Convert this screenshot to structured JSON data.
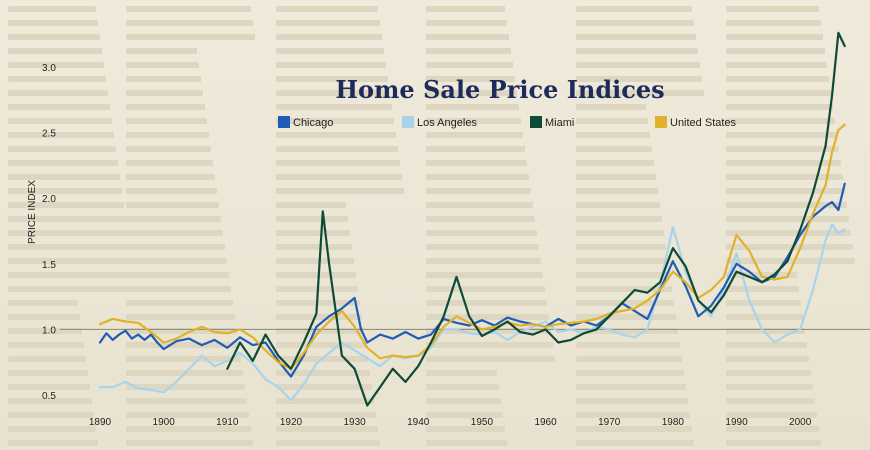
{
  "chart_data": {
    "type": "line",
    "title": "Home Sale Price Indices",
    "ylabel": "PRICE INDEX",
    "xlabel": "",
    "xlim": [
      1887,
      2010
    ],
    "ylim": [
      0.35,
      3.15
    ],
    "x_ticks": [
      1890,
      1900,
      1910,
      1920,
      1930,
      1940,
      1950,
      1960,
      1970,
      1980,
      1990,
      2000
    ],
    "y_ticks": [
      0.5,
      1.0,
      1.5,
      2.0,
      2.5,
      3.0
    ],
    "y_tick_labels": [
      "0.5",
      "1.0",
      "1.5",
      "2.0",
      "2.5",
      "3.0"
    ],
    "reference_line": 1.0,
    "grid": false,
    "legend_position": "top",
    "series": [
      {
        "name": "Chicago",
        "color": "#1f5cb5",
        "points": [
          [
            1890,
            0.9
          ],
          [
            1891,
            0.97
          ],
          [
            1892,
            0.92
          ],
          [
            1893,
            0.96
          ],
          [
            1894,
            0.99
          ],
          [
            1895,
            0.93
          ],
          [
            1896,
            0.96
          ],
          [
            1897,
            0.92
          ],
          [
            1898,
            0.96
          ],
          [
            1899,
            0.9
          ],
          [
            1900,
            0.85
          ],
          [
            1902,
            0.91
          ],
          [
            1904,
            0.93
          ],
          [
            1906,
            0.88
          ],
          [
            1908,
            0.92
          ],
          [
            1910,
            0.86
          ],
          [
            1912,
            0.94
          ],
          [
            1914,
            0.88
          ],
          [
            1916,
            0.9
          ],
          [
            1918,
            0.76
          ],
          [
            1920,
            0.64
          ],
          [
            1922,
            0.8
          ],
          [
            1924,
            1.02
          ],
          [
            1926,
            1.1
          ],
          [
            1928,
            1.16
          ],
          [
            1930,
            1.24
          ],
          [
            1931,
            1.0
          ],
          [
            1932,
            0.9
          ],
          [
            1934,
            0.96
          ],
          [
            1936,
            0.93
          ],
          [
            1938,
            0.98
          ],
          [
            1940,
            0.93
          ],
          [
            1942,
            0.96
          ],
          [
            1944,
            1.08
          ],
          [
            1946,
            1.05
          ],
          [
            1948,
            1.03
          ],
          [
            1950,
            1.07
          ],
          [
            1952,
            1.03
          ],
          [
            1954,
            1.09
          ],
          [
            1956,
            1.06
          ],
          [
            1958,
            1.04
          ],
          [
            1960,
            1.02
          ],
          [
            1962,
            1.08
          ],
          [
            1964,
            1.03
          ],
          [
            1966,
            1.06
          ],
          [
            1968,
            1.03
          ],
          [
            1970,
            1.1
          ],
          [
            1972,
            1.2
          ],
          [
            1974,
            1.14
          ],
          [
            1976,
            1.08
          ],
          [
            1978,
            1.3
          ],
          [
            1980,
            1.52
          ],
          [
            1982,
            1.33
          ],
          [
            1984,
            1.1
          ],
          [
            1986,
            1.18
          ],
          [
            1988,
            1.32
          ],
          [
            1990,
            1.5
          ],
          [
            1992,
            1.44
          ],
          [
            1994,
            1.36
          ],
          [
            1996,
            1.4
          ],
          [
            1998,
            1.55
          ],
          [
            2000,
            1.72
          ],
          [
            2002,
            1.86
          ],
          [
            2004,
            1.94
          ],
          [
            2005,
            1.97
          ],
          [
            2006,
            1.91
          ],
          [
            2007,
            2.11
          ]
        ]
      },
      {
        "name": "Los Angeles",
        "color": "#a9d3ea",
        "points": [
          [
            1890,
            0.56
          ],
          [
            1892,
            0.56
          ],
          [
            1894,
            0.6
          ],
          [
            1896,
            0.55
          ],
          [
            1898,
            0.54
          ],
          [
            1900,
            0.52
          ],
          [
            1902,
            0.6
          ],
          [
            1904,
            0.7
          ],
          [
            1906,
            0.8
          ],
          [
            1908,
            0.72
          ],
          [
            1910,
            0.76
          ],
          [
            1912,
            0.82
          ],
          [
            1914,
            0.74
          ],
          [
            1916,
            0.62
          ],
          [
            1918,
            0.56
          ],
          [
            1920,
            0.46
          ],
          [
            1922,
            0.58
          ],
          [
            1924,
            0.74
          ],
          [
            1926,
            0.82
          ],
          [
            1928,
            0.9
          ],
          [
            1930,
            0.84
          ],
          [
            1932,
            0.78
          ],
          [
            1934,
            0.72
          ],
          [
            1936,
            0.8
          ],
          [
            1938,
            0.78
          ],
          [
            1940,
            0.8
          ],
          [
            1942,
            0.86
          ],
          [
            1944,
            1.0
          ],
          [
            1946,
            1.0
          ],
          [
            1948,
            0.97
          ],
          [
            1950,
            0.96
          ],
          [
            1952,
            0.98
          ],
          [
            1954,
            0.92
          ],
          [
            1956,
            0.98
          ],
          [
            1958,
            1.02
          ],
          [
            1960,
            1.06
          ],
          [
            1962,
            0.98
          ],
          [
            1964,
            1.0
          ],
          [
            1966,
            0.97
          ],
          [
            1968,
            1.02
          ],
          [
            1970,
            1.0
          ],
          [
            1972,
            0.96
          ],
          [
            1974,
            0.94
          ],
          [
            1976,
            1.0
          ],
          [
            1978,
            1.34
          ],
          [
            1980,
            1.78
          ],
          [
            1982,
            1.44
          ],
          [
            1984,
            1.22
          ],
          [
            1986,
            1.1
          ],
          [
            1988,
            1.3
          ],
          [
            1990,
            1.58
          ],
          [
            1992,
            1.22
          ],
          [
            1994,
            1.0
          ],
          [
            1996,
            0.9
          ],
          [
            1998,
            0.96
          ],
          [
            2000,
            1.0
          ],
          [
            2002,
            1.3
          ],
          [
            2004,
            1.68
          ],
          [
            2005,
            1.8
          ],
          [
            2006,
            1.73
          ],
          [
            2007,
            1.76
          ]
        ]
      },
      {
        "name": "Miami",
        "color": "#0e4a36",
        "points": [
          [
            1910,
            0.7
          ],
          [
            1912,
            0.9
          ],
          [
            1914,
            0.76
          ],
          [
            1916,
            0.96
          ],
          [
            1918,
            0.8
          ],
          [
            1920,
            0.7
          ],
          [
            1922,
            0.9
          ],
          [
            1924,
            1.12
          ],
          [
            1925,
            1.9
          ],
          [
            1926,
            1.5
          ],
          [
            1928,
            0.8
          ],
          [
            1930,
            0.7
          ],
          [
            1932,
            0.42
          ],
          [
            1934,
            0.56
          ],
          [
            1936,
            0.7
          ],
          [
            1938,
            0.6
          ],
          [
            1940,
            0.72
          ],
          [
            1942,
            0.9
          ],
          [
            1944,
            1.1
          ],
          [
            1946,
            1.4
          ],
          [
            1948,
            1.1
          ],
          [
            1950,
            0.95
          ],
          [
            1952,
            1.0
          ],
          [
            1954,
            1.06
          ],
          [
            1956,
            0.98
          ],
          [
            1958,
            0.96
          ],
          [
            1960,
            1.0
          ],
          [
            1962,
            0.9
          ],
          [
            1964,
            0.92
          ],
          [
            1966,
            0.97
          ],
          [
            1968,
            1.0
          ],
          [
            1970,
            1.1
          ],
          [
            1972,
            1.2
          ],
          [
            1974,
            1.3
          ],
          [
            1976,
            1.28
          ],
          [
            1978,
            1.36
          ],
          [
            1980,
            1.62
          ],
          [
            1982,
            1.48
          ],
          [
            1984,
            1.22
          ],
          [
            1986,
            1.13
          ],
          [
            1988,
            1.26
          ],
          [
            1990,
            1.44
          ],
          [
            1992,
            1.4
          ],
          [
            1994,
            1.36
          ],
          [
            1996,
            1.42
          ],
          [
            1998,
            1.52
          ],
          [
            2000,
            1.76
          ],
          [
            2002,
            2.04
          ],
          [
            2004,
            2.4
          ],
          [
            2005,
            2.78
          ],
          [
            2006,
            3.26
          ],
          [
            2007,
            3.16
          ]
        ]
      },
      {
        "name": "United States",
        "color": "#e0b22a",
        "points": [
          [
            1890,
            1.04
          ],
          [
            1892,
            1.08
          ],
          [
            1894,
            1.06
          ],
          [
            1896,
            1.05
          ],
          [
            1898,
            0.98
          ],
          [
            1900,
            0.9
          ],
          [
            1902,
            0.93
          ],
          [
            1904,
            0.98
          ],
          [
            1906,
            1.02
          ],
          [
            1908,
            0.98
          ],
          [
            1910,
            0.97
          ],
          [
            1912,
            1.0
          ],
          [
            1914,
            0.94
          ],
          [
            1916,
            0.84
          ],
          [
            1918,
            0.75
          ],
          [
            1920,
            0.7
          ],
          [
            1922,
            0.82
          ],
          [
            1924,
            0.96
          ],
          [
            1926,
            1.06
          ],
          [
            1928,
            1.14
          ],
          [
            1930,
            1.02
          ],
          [
            1932,
            0.86
          ],
          [
            1934,
            0.78
          ],
          [
            1936,
            0.8
          ],
          [
            1938,
            0.79
          ],
          [
            1940,
            0.8
          ],
          [
            1942,
            0.88
          ],
          [
            1944,
            1.02
          ],
          [
            1946,
            1.1
          ],
          [
            1948,
            1.05
          ],
          [
            1950,
            1.0
          ],
          [
            1952,
            1.02
          ],
          [
            1954,
            1.05
          ],
          [
            1956,
            1.03
          ],
          [
            1958,
            1.04
          ],
          [
            1960,
            1.02
          ],
          [
            1962,
            1.04
          ],
          [
            1964,
            1.05
          ],
          [
            1966,
            1.06
          ],
          [
            1968,
            1.08
          ],
          [
            1970,
            1.12
          ],
          [
            1972,
            1.14
          ],
          [
            1974,
            1.16
          ],
          [
            1976,
            1.22
          ],
          [
            1978,
            1.3
          ],
          [
            1980,
            1.44
          ],
          [
            1982,
            1.36
          ],
          [
            1984,
            1.24
          ],
          [
            1986,
            1.3
          ],
          [
            1988,
            1.4
          ],
          [
            1990,
            1.72
          ],
          [
            1992,
            1.6
          ],
          [
            1994,
            1.4
          ],
          [
            1996,
            1.38
          ],
          [
            1998,
            1.4
          ],
          [
            2000,
            1.62
          ],
          [
            2002,
            1.88
          ],
          [
            2004,
            2.1
          ],
          [
            2005,
            2.35
          ],
          [
            2006,
            2.52
          ],
          [
            2007,
            2.56
          ]
        ]
      }
    ]
  }
}
